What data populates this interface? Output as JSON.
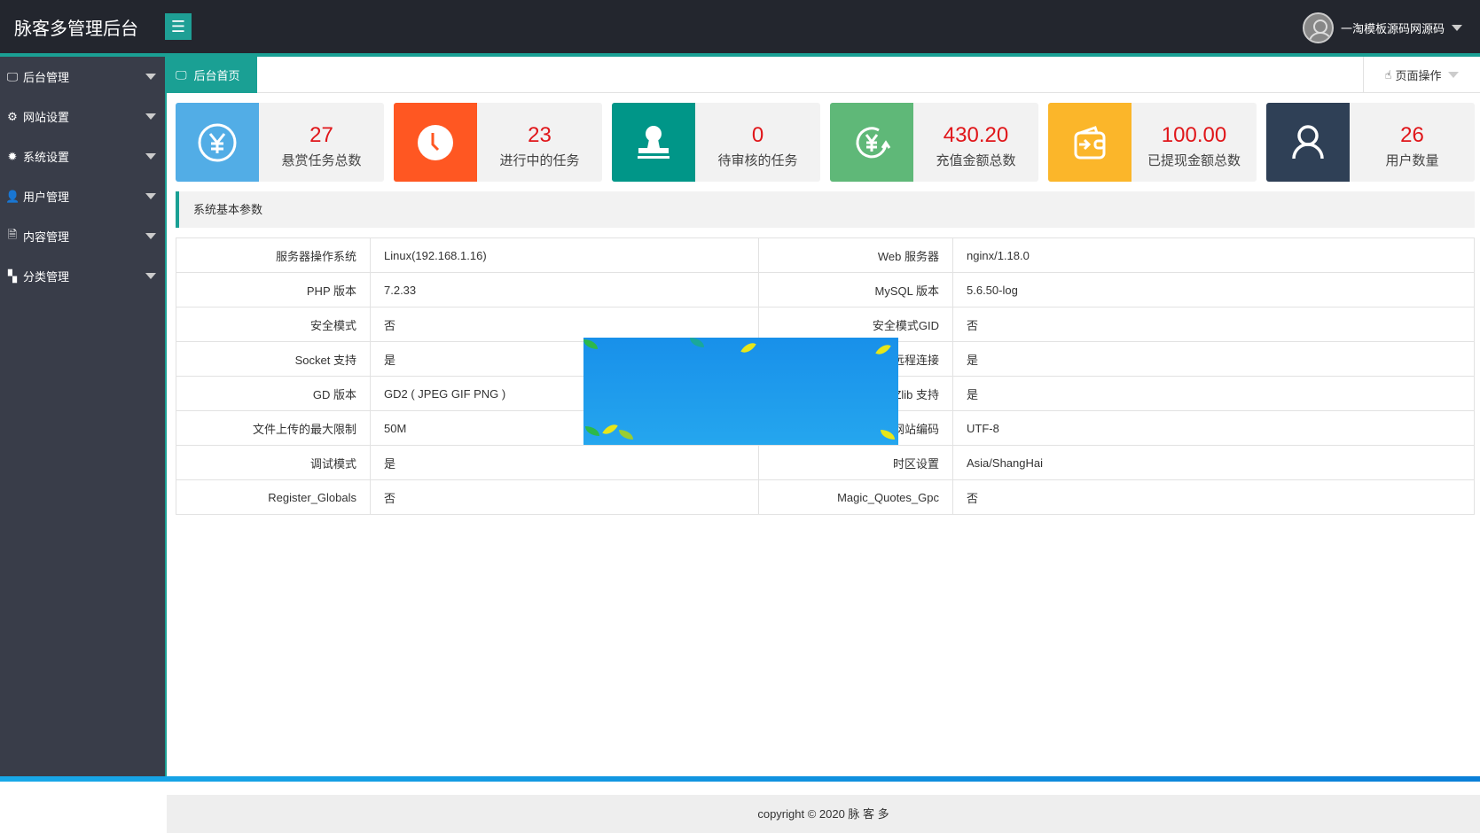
{
  "header": {
    "title": "脉客多管理后台",
    "user_name": "一淘模板源码网源码"
  },
  "sidebar": {
    "items": [
      {
        "label": "后台管理",
        "icon": "monitor-icon"
      },
      {
        "label": "网站设置",
        "icon": "gears-icon"
      },
      {
        "label": "系统设置",
        "icon": "gear-icon"
      },
      {
        "label": "用户管理",
        "icon": "users-icon"
      },
      {
        "label": "内容管理",
        "icon": "document-icon"
      },
      {
        "label": "分类管理",
        "icon": "grid-icon"
      }
    ]
  },
  "tabs": {
    "home": "后台首页",
    "page_ops": "页面操作"
  },
  "cards": [
    {
      "value": "27",
      "label": "悬赏任务总数",
      "color": "#52ade6",
      "icon": "yen-icon"
    },
    {
      "value": "23",
      "label": "进行中的任务",
      "color": "#ff5722",
      "icon": "clock-icon"
    },
    {
      "value": "0",
      "label": "待审核的任务",
      "color": "#009688",
      "icon": "stamp-icon"
    },
    {
      "value": "430.20",
      "label": "充值金额总数",
      "color": "#5fb878",
      "icon": "yen-refresh-icon"
    },
    {
      "value": "100.00",
      "label": "已提现金额总数",
      "color": "#fbb62a",
      "icon": "wallet-icon"
    },
    {
      "value": "26",
      "label": "用户数量",
      "color": "#2f4056",
      "icon": "user-icon"
    }
  ],
  "section_title": "系统基本参数",
  "params": [
    [
      "服务器操作系统",
      "Linux(192.168.1.16)",
      "Web 服务器",
      "nginx/1.18.0"
    ],
    [
      "PHP 版本",
      "7.2.33",
      "MySQL 版本",
      "5.6.50-log"
    ],
    [
      "安全模式",
      "否",
      "安全模式GID",
      "否"
    ],
    [
      "Socket 支持",
      "是",
      "远程连接",
      "是"
    ],
    [
      "GD 版本",
      "GD2 ( JPEG GIF PNG )",
      "Zlib 支持",
      "是"
    ],
    [
      "文件上传的最大限制",
      "50M",
      "网站编码",
      "UTF-8"
    ],
    [
      "调试模式",
      "是",
      "时区设置",
      "Asia/ShangHai"
    ],
    [
      "Register_Globals",
      "否",
      "Magic_Quotes_Gpc",
      "否"
    ]
  ],
  "footer": "copyright © 2020 脉 客 多",
  "colors": {
    "accent": "#1aa094",
    "value_red": "#e0161a"
  }
}
